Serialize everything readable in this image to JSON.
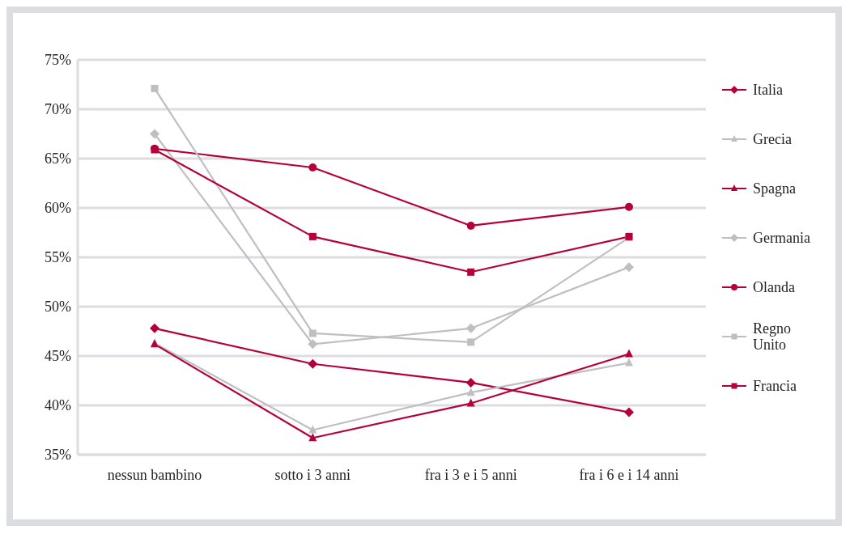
{
  "chart_data": {
    "type": "line",
    "categories": [
      "nessun bambino",
      "sotto i 3 anni",
      "fra i 3 e i 5 anni",
      "fra  i 6 e i 14 anni"
    ],
    "series": [
      {
        "name": "Italia",
        "color": "#b5003a",
        "marker": "diamond",
        "values": [
          47.8,
          44.2,
          42.3,
          39.3
        ]
      },
      {
        "name": "Grecia",
        "color": "#bfbfc3",
        "marker": "triangle",
        "values": [
          46.3,
          37.5,
          41.3,
          44.3
        ]
      },
      {
        "name": "Spagna",
        "color": "#b5003a",
        "marker": "triangle",
        "values": [
          46.2,
          36.7,
          40.2,
          45.2
        ]
      },
      {
        "name": "Germania",
        "color": "#bfbfc3",
        "marker": "diamond",
        "values": [
          67.5,
          46.2,
          47.8,
          54.0
        ]
      },
      {
        "name": "Olanda",
        "color": "#b5003a",
        "marker": "circle",
        "values": [
          66.0,
          64.1,
          58.2,
          60.1
        ]
      },
      {
        "name": "Regno Unito",
        "color": "#bfbfc3",
        "marker": "square",
        "values": [
          72.1,
          47.3,
          46.4,
          57.0
        ]
      },
      {
        "name": "Francia",
        "color": "#b5003a",
        "marker": "square",
        "values": [
          65.9,
          57.1,
          53.5,
          57.1
        ]
      }
    ],
    "ylim": [
      35,
      75
    ],
    "yticks": [
      {
        "value": 35,
        "label": "35%"
      },
      {
        "value": 40,
        "label": "40%"
      },
      {
        "value": 45,
        "label": "45%"
      },
      {
        "value": 50,
        "label": "50%"
      },
      {
        "value": 55,
        "label": "55%"
      },
      {
        "value": 60,
        "label": "60%"
      },
      {
        "value": 65,
        "label": "65%"
      },
      {
        "value": 70,
        "label": "70%"
      },
      {
        "value": 75,
        "label": "75%"
      }
    ],
    "grid": "y",
    "legend": "right",
    "line_style": "solid"
  }
}
